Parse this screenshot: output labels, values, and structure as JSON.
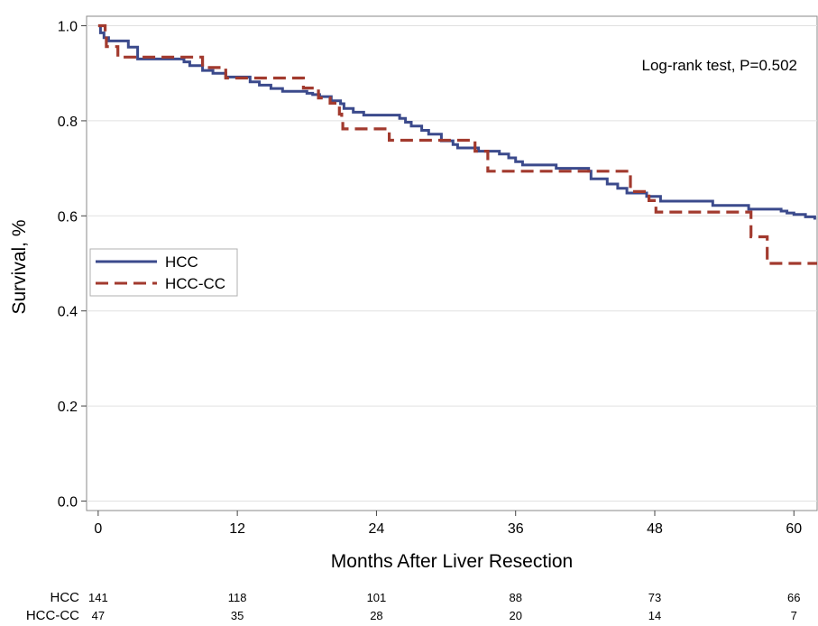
{
  "chart_data": {
    "type": "line",
    "title": "",
    "xlabel": "Months After Liver Resection",
    "ylabel": "Survival, %",
    "xlim": [
      -1,
      62
    ],
    "ylim": [
      -0.02,
      1.02
    ],
    "x_ticks": [
      0,
      12,
      24,
      36,
      48,
      60
    ],
    "x_tick_labels": [
      "0",
      "12",
      "24",
      "36",
      "48",
      "60"
    ],
    "y_ticks": [
      0.0,
      0.2,
      0.4,
      0.6,
      0.8,
      1.0
    ],
    "y_tick_labels": [
      "0.0",
      "0.2",
      "0.4",
      "0.6",
      "0.8",
      "1.0"
    ],
    "grid": "horizontal",
    "annotation": "Log-rank test, P=0.502",
    "legend": {
      "placement": "middle-left",
      "entries": [
        "HCC",
        "HCC-CC"
      ]
    },
    "series": [
      {
        "name": "HCC",
        "color": "#3b4a8c",
        "style": "solid",
        "step": "post",
        "points": [
          [
            0,
            1.0
          ],
          [
            0.2,
            0.985
          ],
          [
            0.5,
            0.975
          ],
          [
            0.9,
            0.968
          ],
          [
            2.6,
            0.955
          ],
          [
            3.4,
            0.93
          ],
          [
            7.4,
            0.924
          ],
          [
            7.9,
            0.916
          ],
          [
            9.0,
            0.906
          ],
          [
            9.9,
            0.9
          ],
          [
            11.0,
            0.892
          ],
          [
            13.1,
            0.882
          ],
          [
            13.9,
            0.875
          ],
          [
            14.9,
            0.868
          ],
          [
            15.9,
            0.862
          ],
          [
            18.0,
            0.858
          ],
          [
            18.5,
            0.855
          ],
          [
            19.1,
            0.851
          ],
          [
            20.1,
            0.842
          ],
          [
            20.9,
            0.836
          ],
          [
            21.2,
            0.826
          ],
          [
            22.0,
            0.818
          ],
          [
            22.9,
            0.812
          ],
          [
            26.0,
            0.805
          ],
          [
            26.5,
            0.797
          ],
          [
            27.0,
            0.789
          ],
          [
            27.9,
            0.78
          ],
          [
            28.5,
            0.772
          ],
          [
            29.6,
            0.758
          ],
          [
            30.6,
            0.75
          ],
          [
            31.0,
            0.743
          ],
          [
            32.8,
            0.736
          ],
          [
            34.6,
            0.73
          ],
          [
            35.4,
            0.722
          ],
          [
            36.0,
            0.714
          ],
          [
            36.6,
            0.707
          ],
          [
            39.5,
            0.7
          ],
          [
            42.3,
            0.694
          ],
          [
            42.5,
            0.678
          ],
          [
            43.9,
            0.667
          ],
          [
            44.8,
            0.658
          ],
          [
            45.6,
            0.648
          ],
          [
            47.3,
            0.641
          ],
          [
            48.5,
            0.631
          ],
          [
            53.0,
            0.622
          ],
          [
            56.1,
            0.614
          ],
          [
            58.9,
            0.61
          ],
          [
            59.4,
            0.606
          ],
          [
            60.0,
            0.603
          ],
          [
            61.0,
            0.598
          ],
          [
            61.8,
            0.592
          ]
        ]
      },
      {
        "name": "HCC-CC",
        "color": "#a23a2e",
        "style": "dashed",
        "step": "post",
        "points": [
          [
            0,
            1.0
          ],
          [
            0.6,
            0.98
          ],
          [
            0.7,
            0.956
          ],
          [
            1.7,
            0.934
          ],
          [
            9.0,
            0.912
          ],
          [
            11.0,
            0.89
          ],
          [
            17.7,
            0.869
          ],
          [
            19.0,
            0.848
          ],
          [
            20.0,
            0.837
          ],
          [
            20.8,
            0.814
          ],
          [
            21.0,
            0.798
          ],
          [
            21.1,
            0.783
          ],
          [
            25.1,
            0.759
          ],
          [
            32.5,
            0.736
          ],
          [
            33.6,
            0.694
          ],
          [
            45.9,
            0.651
          ],
          [
            47.5,
            0.632
          ],
          [
            48.1,
            0.608
          ],
          [
            56.3,
            0.556
          ],
          [
            57.7,
            0.5
          ],
          [
            62.0,
            0.5
          ]
        ]
      }
    ],
    "at_risk_table": {
      "times": [
        0,
        12,
        24,
        36,
        48,
        60
      ],
      "rows": [
        {
          "label": "HCC",
          "counts": [
            "141",
            "118",
            "101",
            "88",
            "73",
            "66"
          ]
        },
        {
          "label": "HCC-CC",
          "counts": [
            "47",
            "35",
            "28",
            "20",
            "14",
            "7"
          ]
        }
      ]
    }
  }
}
